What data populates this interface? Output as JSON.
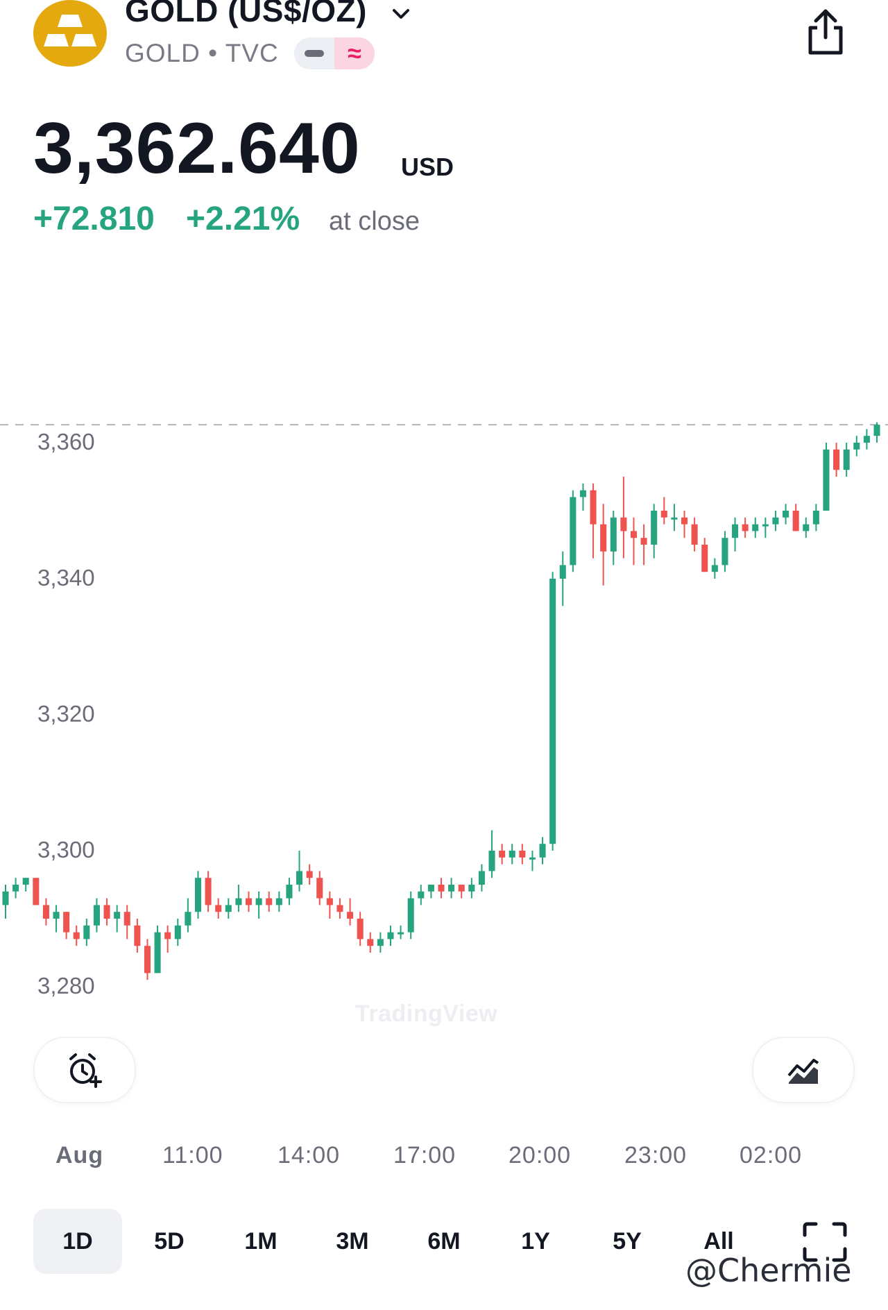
{
  "header": {
    "symbol_title": "GOLD (US$/OZ)",
    "symbol_sub": "GOLD • TVC",
    "pill_glyph": "≈",
    "icons": [
      "gold-bars-icon",
      "chevron-down-icon",
      "share-icon"
    ]
  },
  "quote": {
    "price": "3,362.640",
    "currency": "USD",
    "change": "+72.810",
    "change_pct": "+2.21%",
    "status": "at close"
  },
  "colors": {
    "up": "#26a37f",
    "down": "#ef5350",
    "accent": "#e3a90f",
    "text": "#131722",
    "muted": "#787b86"
  },
  "chart_data": {
    "type": "candlestick",
    "ylim": [
      3275,
      3366
    ],
    "y_ticks": [
      3360,
      3340,
      3320,
      3300,
      3280
    ],
    "y_tick_labels": [
      "3,360",
      "3,340",
      "3,320",
      "3,300",
      "3,280"
    ],
    "x_tick_labels": [
      "Aug",
      "11:00",
      "14:00",
      "17:00",
      "20:00",
      "23:00",
      "02:00"
    ],
    "last_price": 3362.64,
    "grid": false,
    "candles": [
      [
        3292,
        3295,
        3290,
        3294
      ],
      [
        3294,
        3296,
        3293,
        3295
      ],
      [
        3295,
        3296,
        3294,
        3296
      ],
      [
        3296,
        3296,
        3292,
        3292
      ],
      [
        3292,
        3293,
        3289,
        3290
      ],
      [
        3290,
        3292,
        3288,
        3291
      ],
      [
        3291,
        3291,
        3287,
        3288
      ],
      [
        3288,
        3289,
        3286,
        3287
      ],
      [
        3287,
        3290,
        3286,
        3289
      ],
      [
        3289,
        3293,
        3288,
        3292
      ],
      [
        3292,
        3293,
        3289,
        3290
      ],
      [
        3290,
        3292,
        3288,
        3291
      ],
      [
        3291,
        3292,
        3287,
        3289
      ],
      [
        3289,
        3290,
        3285,
        3286
      ],
      [
        3286,
        3287,
        3281,
        3282
      ],
      [
        3282,
        3289,
        3282,
        3288
      ],
      [
        3288,
        3289,
        3285,
        3287
      ],
      [
        3287,
        3290,
        3286,
        3289
      ],
      [
        3289,
        3293,
        3288,
        3291
      ],
      [
        3291,
        3297,
        3290,
        3296
      ],
      [
        3296,
        3297,
        3291,
        3292
      ],
      [
        3292,
        3293,
        3290,
        3291
      ],
      [
        3291,
        3293,
        3290,
        3292
      ],
      [
        3292,
        3295,
        3291,
        3293
      ],
      [
        3293,
        3294,
        3291,
        3292
      ],
      [
        3292,
        3294,
        3290,
        3293
      ],
      [
        3293,
        3294,
        3291,
        3292
      ],
      [
        3292,
        3294,
        3291,
        3293
      ],
      [
        3293,
        3296,
        3292,
        3295
      ],
      [
        3295,
        3300,
        3294,
        3297
      ],
      [
        3297,
        3298,
        3295,
        3296
      ],
      [
        3296,
        3297,
        3292,
        3293
      ],
      [
        3293,
        3294,
        3290,
        3292
      ],
      [
        3292,
        3293,
        3290,
        3291
      ],
      [
        3291,
        3293,
        3289,
        3290
      ],
      [
        3290,
        3291,
        3286,
        3287
      ],
      [
        3287,
        3288,
        3285,
        3286
      ],
      [
        3286,
        3288,
        3285,
        3287
      ],
      [
        3287,
        3289,
        3286,
        3288
      ],
      [
        3288,
        3289,
        3287,
        3288
      ],
      [
        3288,
        3294,
        3287,
        3293
      ],
      [
        3293,
        3295,
        3292,
        3294
      ],
      [
        3294,
        3295,
        3293,
        3295
      ],
      [
        3295,
        3296,
        3293,
        3294
      ],
      [
        3294,
        3296,
        3293,
        3295
      ],
      [
        3295,
        3295,
        3293,
        3294
      ],
      [
        3294,
        3296,
        3293,
        3295
      ],
      [
        3295,
        3298,
        3294,
        3297
      ],
      [
        3297,
        3303,
        3296,
        3300
      ],
      [
        3300,
        3301,
        3298,
        3299
      ],
      [
        3299,
        3301,
        3298,
        3300
      ],
      [
        3300,
        3301,
        3298,
        3299
      ],
      [
        3299,
        3300,
        3297,
        3299
      ],
      [
        3299,
        3302,
        3298,
        3301
      ],
      [
        3301,
        3341,
        3300,
        3340
      ],
      [
        3340,
        3344,
        3336,
        3342
      ],
      [
        3342,
        3353,
        3341,
        3352
      ],
      [
        3352,
        3354,
        3350,
        3353
      ],
      [
        3353,
        3354,
        3343,
        3348
      ],
      [
        3348,
        3351,
        3339,
        3344
      ],
      [
        3344,
        3350,
        3342,
        3349
      ],
      [
        3349,
        3355,
        3343,
        3347
      ],
      [
        3347,
        3349,
        3342,
        3346
      ],
      [
        3346,
        3348,
        3342,
        3345
      ],
      [
        3345,
        3351,
        3343,
        3350
      ],
      [
        3350,
        3352,
        3348,
        3349
      ],
      [
        3349,
        3351,
        3347,
        3349
      ],
      [
        3349,
        3350,
        3346,
        3348
      ],
      [
        3348,
        3349,
        3344,
        3345
      ],
      [
        3345,
        3346,
        3341,
        3341
      ],
      [
        3341,
        3343,
        3340,
        3342
      ],
      [
        3342,
        3347,
        3341,
        3346
      ],
      [
        3346,
        3349,
        3344,
        3348
      ],
      [
        3348,
        3349,
        3346,
        3347
      ],
      [
        3347,
        3349,
        3346,
        3348
      ],
      [
        3348,
        3349,
        3346,
        3348
      ],
      [
        3348,
        3350,
        3347,
        3349
      ],
      [
        3349,
        3351,
        3348,
        3350
      ],
      [
        3350,
        3351,
        3347,
        3347
      ],
      [
        3347,
        3349,
        3346,
        3348
      ],
      [
        3348,
        3351,
        3347,
        3350
      ],
      [
        3350,
        3360,
        3350,
        3359
      ],
      [
        3359,
        3360,
        3355,
        3356
      ],
      [
        3356,
        3360,
        3355,
        3359
      ],
      [
        3359,
        3361,
        3358,
        3360
      ],
      [
        3360,
        3362,
        3359,
        3361
      ],
      [
        3361,
        3363,
        3360,
        3362.64
      ]
    ]
  },
  "watermark": "TradingView",
  "controls": {
    "left_button": "alarm-add-icon",
    "right_button": "chart-style-icon"
  },
  "ranges": [
    "1D",
    "5D",
    "1M",
    "3M",
    "6M",
    "1Y",
    "5Y",
    "All"
  ],
  "selected_range": "1D",
  "overlay_handle": "@Chermie"
}
